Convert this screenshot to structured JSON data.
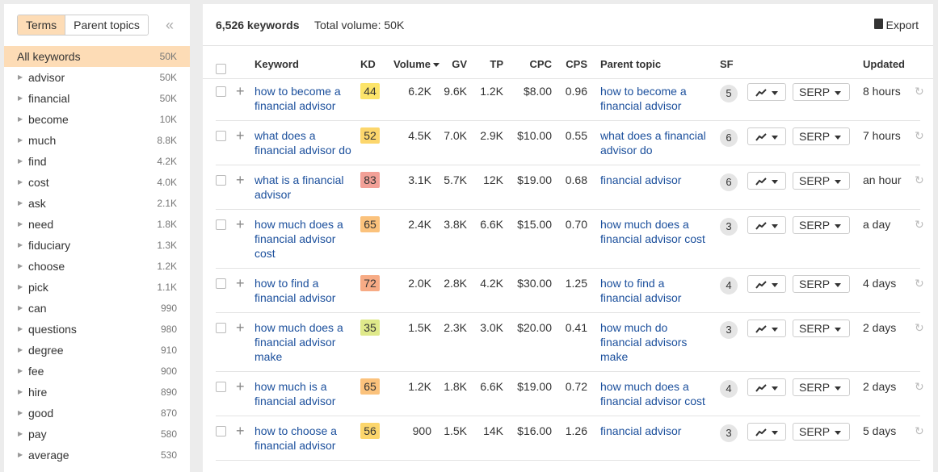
{
  "sidebar": {
    "tabs": [
      "Terms",
      "Parent topics"
    ],
    "items": [
      {
        "label": "All keywords",
        "count": "50K"
      },
      {
        "label": "advisor",
        "count": "50K"
      },
      {
        "label": "financial",
        "count": "50K"
      },
      {
        "label": "become",
        "count": "10K"
      },
      {
        "label": "much",
        "count": "8.8K"
      },
      {
        "label": "find",
        "count": "4.2K"
      },
      {
        "label": "cost",
        "count": "4.0K"
      },
      {
        "label": "ask",
        "count": "2.1K"
      },
      {
        "label": "need",
        "count": "1.8K"
      },
      {
        "label": "fiduciary",
        "count": "1.3K"
      },
      {
        "label": "choose",
        "count": "1.2K"
      },
      {
        "label": "pick",
        "count": "1.1K"
      },
      {
        "label": "can",
        "count": "990"
      },
      {
        "label": "questions",
        "count": "980"
      },
      {
        "label": "degree",
        "count": "910"
      },
      {
        "label": "fee",
        "count": "900"
      },
      {
        "label": "hire",
        "count": "890"
      },
      {
        "label": "good",
        "count": "870"
      },
      {
        "label": "pay",
        "count": "580"
      },
      {
        "label": "average",
        "count": "530"
      }
    ]
  },
  "header": {
    "keyword_count": "6,526 keywords",
    "total_volume": "Total volume: 50K",
    "export": "Export"
  },
  "table": {
    "columns": [
      "Keyword",
      "KD",
      "Volume",
      "GV",
      "TP",
      "CPC",
      "CPS",
      "Parent topic",
      "SF",
      "Updated"
    ],
    "serp": "SERP",
    "rows": [
      {
        "keyword": "how to become a financial advisor",
        "kd": 44,
        "volume": "6.2K",
        "gv": "9.6K",
        "tp": "1.2K",
        "cpc": "$8.00",
        "cps": "0.96",
        "parent": "how to become a financial advisor",
        "sf": 5,
        "updated": "8 hours"
      },
      {
        "keyword": "what does a financial advisor do",
        "kd": 52,
        "volume": "4.5K",
        "gv": "7.0K",
        "tp": "2.9K",
        "cpc": "$10.00",
        "cps": "0.55",
        "parent": "what does a financial advisor do",
        "sf": 6,
        "updated": "7 hours"
      },
      {
        "keyword": "what is a financial advisor",
        "kd": 83,
        "volume": "3.1K",
        "gv": "5.7K",
        "tp": "12K",
        "cpc": "$19.00",
        "cps": "0.68",
        "parent": "financial advisor",
        "sf": 6,
        "updated": "an hour"
      },
      {
        "keyword": "how much does a financial advisor cost",
        "kd": 65,
        "volume": "2.4K",
        "gv": "3.8K",
        "tp": "6.6K",
        "cpc": "$15.00",
        "cps": "0.70",
        "parent": "how much does a financial advisor cost",
        "sf": 3,
        "updated": "a day"
      },
      {
        "keyword": "how to find a financial advisor",
        "kd": 72,
        "volume": "2.0K",
        "gv": "2.8K",
        "tp": "4.2K",
        "cpc": "$30.00",
        "cps": "1.25",
        "parent": "how to find a financial advisor",
        "sf": 4,
        "updated": "4 days"
      },
      {
        "keyword": "how much does a financial advisor make",
        "kd": 35,
        "volume": "1.5K",
        "gv": "2.3K",
        "tp": "3.0K",
        "cpc": "$20.00",
        "cps": "0.41",
        "parent": "how much do financial advisors make",
        "sf": 3,
        "updated": "2 days"
      },
      {
        "keyword": "how much is a financial advisor",
        "kd": 65,
        "volume": "1.2K",
        "gv": "1.8K",
        "tp": "6.6K",
        "cpc": "$19.00",
        "cps": "0.72",
        "parent": "how much does a financial advisor cost",
        "sf": 4,
        "updated": "2 days"
      },
      {
        "keyword": "how to choose a financial advisor",
        "kd": 56,
        "volume": "900",
        "gv": "1.5K",
        "tp": "14K",
        "cpc": "$16.00",
        "cps": "1.26",
        "parent": "financial advisor",
        "sf": 3,
        "updated": "5 days"
      }
    ]
  }
}
